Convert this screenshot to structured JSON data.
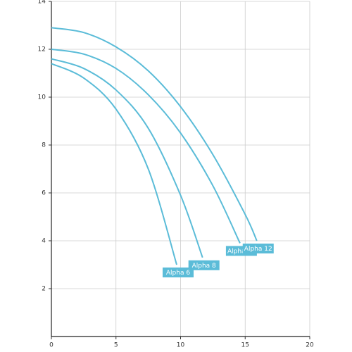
{
  "chart_data": {
    "type": "line",
    "xlim": [
      0,
      20
    ],
    "ylim": [
      0,
      14
    ],
    "xticks": [
      0,
      5,
      10,
      15,
      20
    ],
    "yticks": [
      2,
      4,
      6,
      8,
      10,
      12,
      14
    ],
    "grid": true,
    "series": [
      {
        "name": "Alpha 6",
        "color": "#5bbcd8",
        "x": [
          0,
          2.5,
          5,
          7.5,
          9.7
        ],
        "values": [
          11.4,
          10.8,
          9.5,
          7.0,
          3.0
        ]
      },
      {
        "name": "Alpha 8",
        "color": "#5bbcd8",
        "x": [
          0,
          2.5,
          5,
          7.5,
          10,
          11.7
        ],
        "values": [
          11.6,
          11.2,
          10.3,
          8.7,
          5.9,
          3.3
        ]
      },
      {
        "name": "Alpha 10",
        "color": "#5bbcd8",
        "x": [
          0,
          2.5,
          5,
          7.5,
          10,
          12.5,
          14.6
        ],
        "values": [
          12.0,
          11.8,
          11.2,
          10.1,
          8.5,
          6.3,
          3.9
        ]
      },
      {
        "name": "Alpha 12",
        "color": "#5bbcd8",
        "x": [
          0,
          2.5,
          5,
          7.5,
          10,
          12.5,
          15,
          15.9
        ],
        "values": [
          12.9,
          12.7,
          12.1,
          11.1,
          9.6,
          7.6,
          5.1,
          4.0
        ]
      }
    ]
  }
}
